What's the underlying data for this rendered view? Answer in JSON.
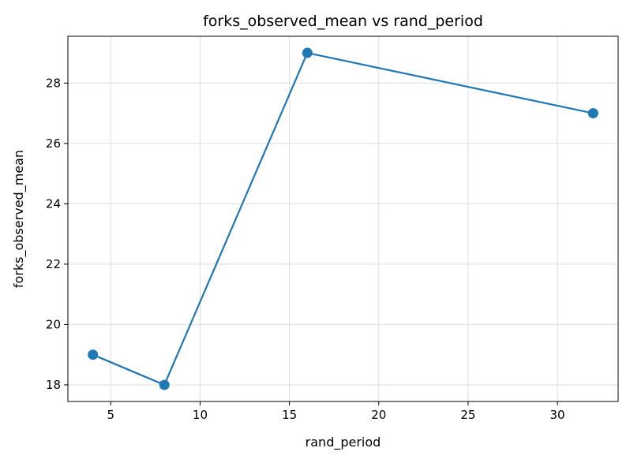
{
  "chart_data": {
    "type": "line",
    "title": "forks_observed_mean vs rand_period",
    "xlabel": "rand_period",
    "ylabel": "forks_observed_mean",
    "x": [
      4,
      8,
      16,
      32
    ],
    "series": [
      {
        "values": [
          19,
          18,
          29,
          27
        ],
        "color": "#1f77b4",
        "marker": "circle"
      }
    ],
    "xlim": [
      2.6,
      33.4
    ],
    "ylim": [
      17.45,
      29.55
    ],
    "xticks": [
      5,
      10,
      15,
      20,
      25,
      30
    ],
    "yticks": [
      18,
      20,
      22,
      24,
      26,
      28
    ],
    "grid": true,
    "legend": "none"
  }
}
